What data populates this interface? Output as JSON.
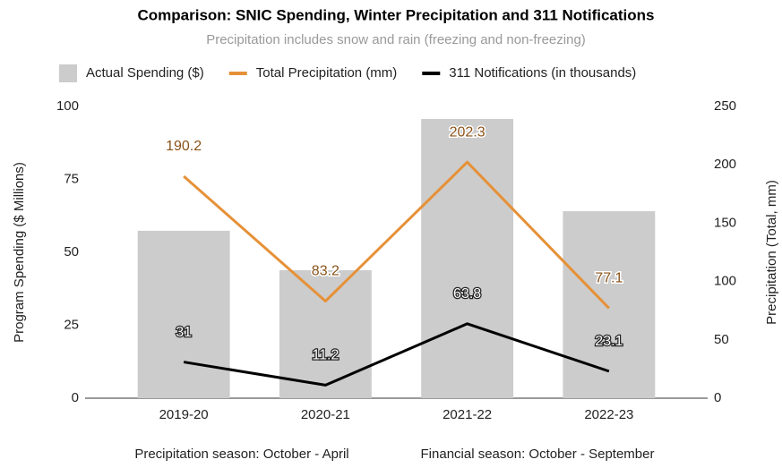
{
  "chart_data": {
    "type": "bar-line",
    "title": "Comparison: SNIC Spending, Winter Precipitation and 311 Notifications",
    "subtitle": "Precipitation includes snow and rain (freezing and non-freezing)",
    "categories": [
      "2019-20",
      "2020-21",
      "2021-22",
      "2022-23"
    ],
    "series": [
      {
        "name": "Actual Spending ($)",
        "type": "bar",
        "color": "#cccccc",
        "values": [
          57.4,
          43.9,
          95.7,
          64.1
        ]
      },
      {
        "name": "Total Precipitation (mm)",
        "type": "line",
        "axis": "y2",
        "color": "#e69138",
        "values": [
          190.2,
          83.2,
          202.3,
          77.1
        ]
      },
      {
        "name": "311 Notifications (in thousands)",
        "type": "line",
        "axis": "y2",
        "color": "#000000",
        "values": [
          31,
          11.2,
          63.8,
          23.1
        ]
      }
    ],
    "ylabel": "Program Spending ($ Millions)",
    "y2label": "Precipitation (Total, mm)",
    "ylim": [
      0,
      100
    ],
    "yticks": [
      0,
      25,
      50,
      75,
      100
    ],
    "y2lim": [
      0,
      250
    ],
    "y2ticks": [
      0,
      50,
      100,
      150,
      200,
      250
    ],
    "legend": "top",
    "grid": false,
    "footnotes": [
      "Precipitation season: October - April",
      "Financial season: October - September"
    ]
  }
}
